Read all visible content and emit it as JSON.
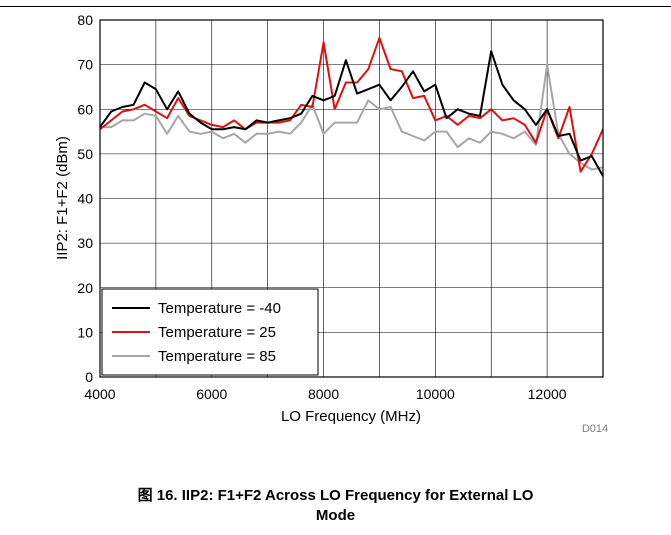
{
  "chart_data": {
    "type": "line",
    "xlabel": "LO Frequency (MHz)",
    "ylabel": "IIP2: F1+F2 (dBm)",
    "xlim": [
      4000,
      13000
    ],
    "ylim": [
      0,
      80
    ],
    "x_ticks": [
      4000,
      6000,
      8000,
      10000,
      12000
    ],
    "y_ticks": [
      0,
      10,
      20,
      30,
      40,
      50,
      60,
      70,
      80
    ],
    "grid": true,
    "legend_position": "bottom-left",
    "x": [
      4000,
      4200,
      4400,
      4600,
      4800,
      5000,
      5200,
      5400,
      5600,
      5800,
      6000,
      6200,
      6400,
      6600,
      6800,
      7000,
      7200,
      7400,
      7600,
      7800,
      8000,
      8200,
      8400,
      8600,
      8800,
      9000,
      9200,
      9400,
      9600,
      9800,
      10000,
      10200,
      10400,
      10600,
      10800,
      11000,
      11200,
      11400,
      11600,
      11800,
      12000,
      12200,
      12400,
      12600,
      12800,
      13000
    ],
    "series": [
      {
        "name": "Temperature = -40",
        "color": "#000000",
        "values": [
          56,
          59.5,
          60.5,
          61,
          66,
          64.5,
          60,
          64,
          59,
          57,
          55.5,
          55.5,
          56,
          55.5,
          57.5,
          57,
          57.5,
          58,
          59,
          63,
          62,
          63,
          71,
          63.5,
          64.5,
          65.5,
          62,
          65,
          68.5,
          64,
          65.5,
          58,
          60,
          59,
          58.5,
          73,
          65.5,
          62,
          60,
          56.5,
          60,
          54,
          54.5,
          48.5,
          49.5,
          45
        ]
      },
      {
        "name": "Temperature = 25",
        "color": "#e01010",
        "values": [
          55.5,
          57.5,
          59.5,
          60,
          61,
          59.5,
          58,
          62.5,
          58.5,
          57.5,
          56.5,
          56,
          57.5,
          55.5,
          57,
          57,
          57,
          57.5,
          61,
          60.5,
          75,
          60,
          66,
          66,
          69,
          76,
          69,
          68.5,
          62.5,
          63,
          57.5,
          58.5,
          56.5,
          58.5,
          58,
          60,
          57.5,
          58,
          56.5,
          52.5,
          60,
          53.5,
          60.5,
          46,
          50,
          55.5
        ]
      },
      {
        "name": "Temperature = 85",
        "color": "#a6a6a6",
        "values": [
          56,
          56,
          57.5,
          57.5,
          59,
          58.5,
          54.5,
          58.5,
          55,
          54.5,
          55,
          53.5,
          54.5,
          52.5,
          54.5,
          54.5,
          55,
          54.5,
          57,
          61,
          54.5,
          57,
          57,
          57,
          62,
          60,
          60.5,
          55,
          54,
          53,
          55,
          55,
          51.5,
          53.5,
          52.5,
          55,
          54.5,
          53.5,
          55,
          52,
          70,
          54.5,
          50,
          48,
          46.5,
          47
        ]
      }
    ]
  },
  "figure_code": "D014",
  "caption_line1": "图 16. IIP2: F1+F2 Across LO Frequency for External LO",
  "caption_line2": "Mode"
}
